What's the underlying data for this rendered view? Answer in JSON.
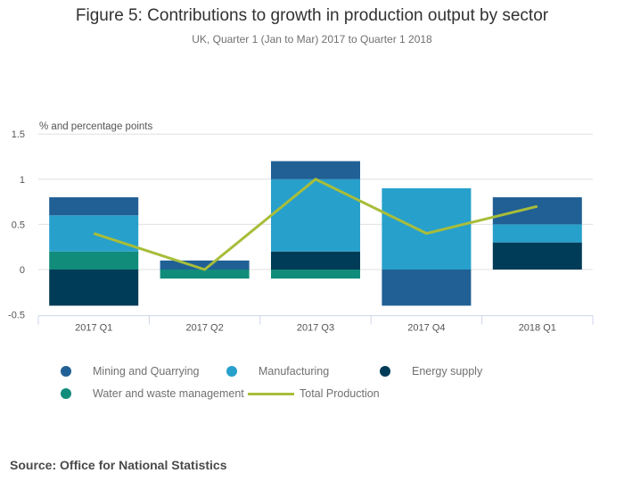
{
  "chart_data": {
    "type": "bar",
    "stacked": true,
    "title": "Figure 5: Contributions to growth in production output by sector",
    "subtitle": "UK, Quarter 1 (Jan to Mar) 2017 to Quarter 1 2018",
    "ylabel": "% and percentage points",
    "xlabel": "",
    "ylim": [
      -0.5,
      1.5
    ],
    "yticks": [
      1.5,
      1,
      0.5,
      0,
      -0.5
    ],
    "ytick_labels": [
      "1.5",
      "1",
      "0.5",
      "0",
      "-0.5"
    ],
    "grid": true,
    "categories": [
      "2017 Q1",
      "2017 Q2",
      "2017 Q3",
      "2017 Q4",
      "2018 Q1"
    ],
    "series": [
      {
        "name": "Mining and Quarrying",
        "kind": "bar",
        "color": "#206095",
        "values": [
          0.2,
          0.1,
          0.2,
          -0.4,
          0.3
        ]
      },
      {
        "name": "Manufacturing",
        "kind": "bar",
        "color": "#27a0cc",
        "values": [
          0.4,
          0.0,
          0.8,
          0.9,
          0.2
        ]
      },
      {
        "name": "Energy supply",
        "kind": "bar",
        "color": "#003c57",
        "values": [
          -0.4,
          0.0,
          0.2,
          0.0,
          0.3
        ]
      },
      {
        "name": "Water and waste management",
        "kind": "bar",
        "color": "#118c7b",
        "values": [
          0.2,
          -0.1,
          -0.1,
          0.0,
          0.0
        ]
      },
      {
        "name": "Total Production",
        "kind": "line",
        "color": "#a8bd3a",
        "values": [
          0.4,
          0.0,
          1.0,
          0.4,
          0.7
        ]
      }
    ],
    "stack_order_bottom_to_top": [
      "Energy supply",
      "Water and waste management",
      "Manufacturing",
      "Mining and Quarrying"
    ],
    "legend_position": "bottom"
  },
  "source": "Source: Office for National Statistics"
}
